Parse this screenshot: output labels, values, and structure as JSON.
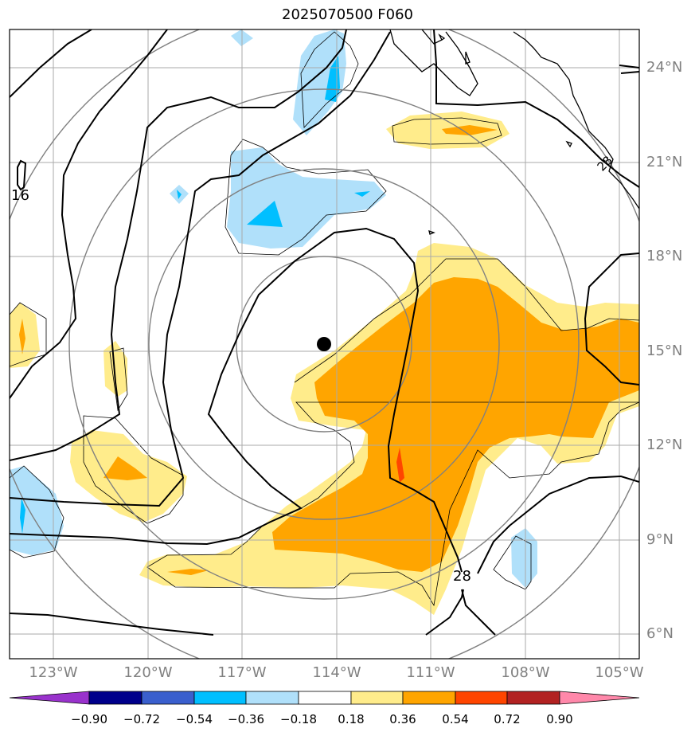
{
  "title": "2025070500 F060",
  "lat_labels": [
    "24°N",
    "21°N",
    "18°N",
    "15°N",
    "12°N",
    "9°N",
    "6°N"
  ],
  "lon_labels": [
    "123°W",
    "120°W",
    "117°W",
    "114°W",
    "111°W",
    "108°W",
    "105°W"
  ],
  "contour_labels": [
    "16",
    "28",
    "28"
  ],
  "colorbar": {
    "labels": [
      "−0.90",
      "−0.72",
      "−0.54",
      "−0.36",
      "−0.18",
      "0.18",
      "0.36",
      "0.54",
      "0.72",
      "0.90"
    ],
    "colors": [
      "#9932cc",
      "#00008b",
      "#3a5fcd",
      "#00bfff",
      "#b0e0fa",
      "#ffffff",
      "#ffec8b",
      "#ffa500",
      "#ff4500",
      "#b22222",
      "#ff88aa"
    ]
  },
  "colors": {
    "grid": "#aaaaaa",
    "coast": "#000000",
    "circle": "#808080",
    "light_blue": "#b0e0fa",
    "blue": "#00bfff",
    "light_yellow": "#ffec8b",
    "orange": "#ffa500",
    "red_orange": "#ff4500"
  }
}
